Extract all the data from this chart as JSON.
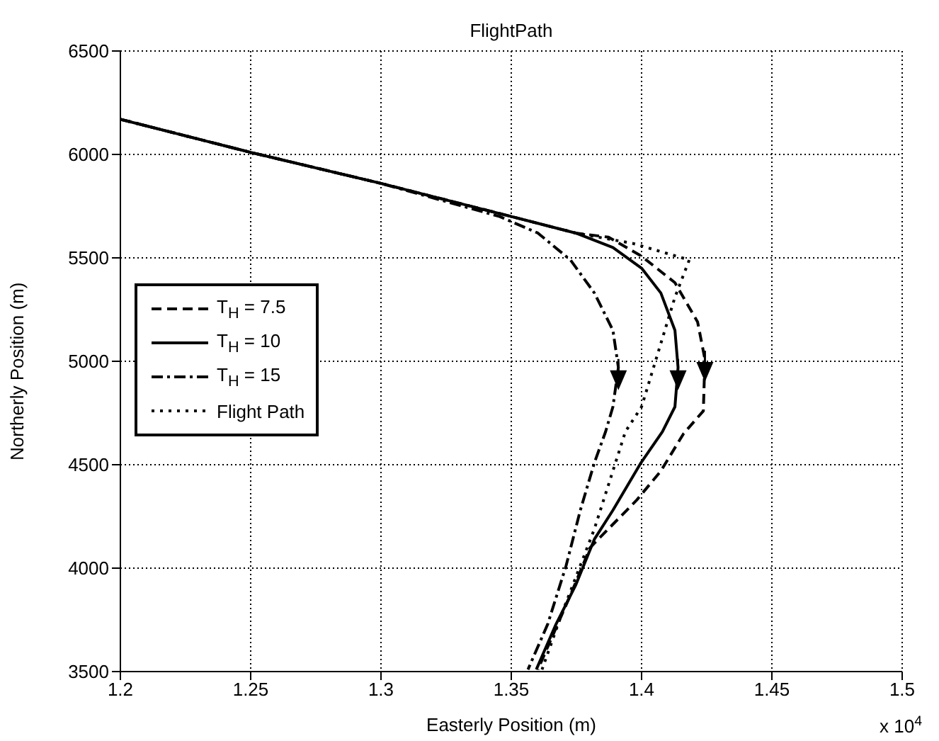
{
  "chart_data": {
    "type": "line",
    "title": "FlightPath",
    "xlabel": "Easterly Position (m)",
    "ylabel": "Northerly Position (m)",
    "annotations": [
      "x 10$^{4}$"
    ],
    "xlim": [
      1.2,
      1.5
    ],
    "xticks": [
      1.2,
      1.25,
      1.3,
      1.35,
      1.4,
      1.45,
      1.5
    ],
    "ylim": [
      3500,
      6500
    ],
    "yticks": [
      3500,
      4000,
      4500,
      5000,
      5500,
      6000,
      6500
    ],
    "grid": true,
    "legend": "left",
    "series": [
      {
        "name": "T$_{H}$ = 7.5",
        "color": "#000000",
        "line_style": "dashed",
        "x": [
          1.2,
          1.25,
          1.3,
          1.35,
          1.3747,
          1.3873,
          1.3998,
          1.4128,
          1.4215,
          1.4243,
          1.4237,
          1.4161,
          1.4074,
          1.3982,
          1.3873,
          1.3803,
          1.3727,
          1.3602
        ],
        "values": [
          6170,
          6010,
          5860,
          5700,
          5620,
          5600,
          5510,
          5380,
          5190,
          5010,
          4760,
          4650,
          4470,
          4330,
          4190,
          4100,
          3870,
          3510
        ]
      },
      {
        "name": "T$_{H}$ = 10",
        "color": "#000000",
        "line_style": "solid",
        "x": [
          1.2,
          1.25,
          1.3,
          1.35,
          1.3747,
          1.389,
          1.4,
          1.4074,
          1.4128,
          1.414,
          1.4128,
          1.408,
          1.3998,
          1.389,
          1.3819,
          1.3748,
          1.3672,
          1.3596
        ],
        "values": [
          6170,
          6010,
          5860,
          5700,
          5620,
          5550,
          5450,
          5330,
          5150,
          4970,
          4780,
          4660,
          4510,
          4280,
          4140,
          3920,
          3730,
          3510
        ]
      },
      {
        "name": "T$_{H}$ = 15",
        "color": "#000000",
        "line_style": "dashdot",
        "x": [
          1.2,
          1.25,
          1.3,
          1.3455,
          1.3602,
          1.3727,
          1.3819,
          1.389,
          1.3911,
          1.389,
          1.3862,
          1.3819,
          1.3765,
          1.371,
          1.364,
          1.3564
        ],
        "values": [
          6170,
          6010,
          5860,
          5700,
          5620,
          5490,
          5330,
          5150,
          4970,
          4780,
          4660,
          4510,
          4280,
          4010,
          3730,
          3510
        ]
      },
      {
        "name": "Flight Path",
        "color": "#000000",
        "line_style": "dotted",
        "x": [
          1.2,
          1.25,
          1.3,
          1.35,
          1.3747,
          1.3966,
          1.4183,
          1.4128,
          1.4,
          1.3938,
          1.3819,
          1.3694,
          1.3618
        ],
        "values": [
          6170,
          6010,
          5860,
          5700,
          5620,
          5570,
          5490,
          5310,
          4780,
          4660,
          4190,
          3780,
          3510
        ]
      }
    ]
  }
}
